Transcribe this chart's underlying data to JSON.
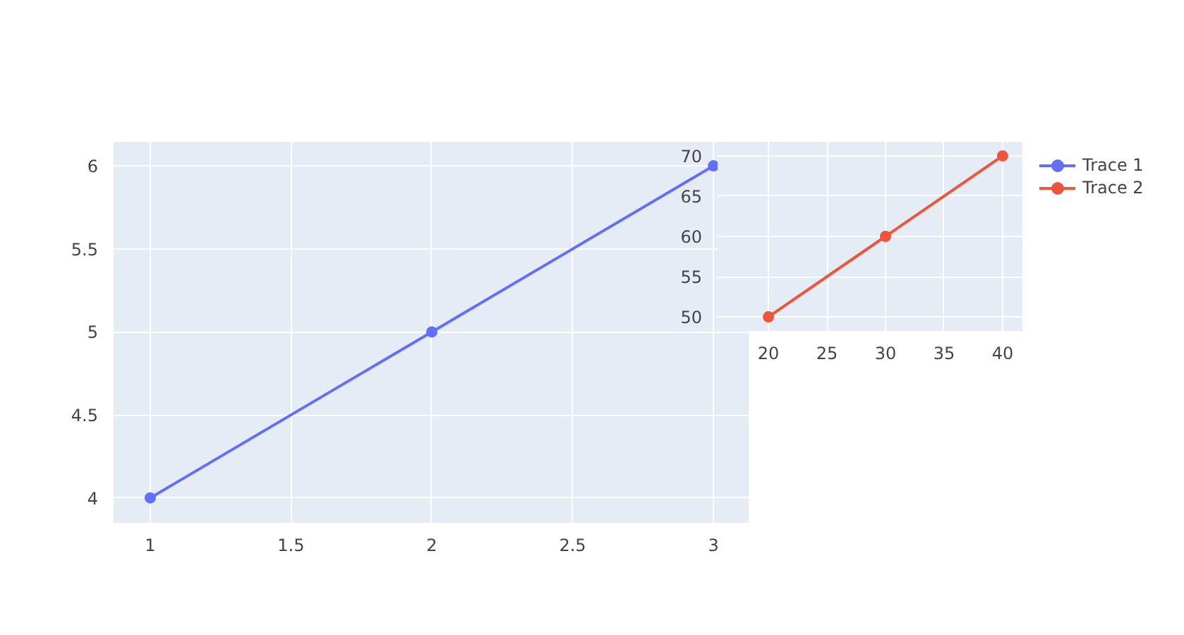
{
  "chart_data": [
    {
      "type": "line",
      "x": [
        1,
        2,
        3
      ],
      "series": [
        {
          "name": "Trace 1",
          "color": "#636efa",
          "values": [
            4,
            5,
            6
          ]
        }
      ],
      "xlim": [
        0.87,
        3.125
      ],
      "ylim": [
        3.85,
        6.145
      ],
      "xticks": [
        1,
        1.5,
        2,
        2.5,
        3
      ],
      "yticks": [
        4,
        4.5,
        5,
        5.5,
        6
      ],
      "grid": true,
      "marker": "circle",
      "legend": "right"
    },
    {
      "type": "line",
      "x": [
        20,
        30,
        40
      ],
      "series": [
        {
          "name": "Trace 2",
          "color": "#ef553b",
          "values": [
            50,
            60,
            70
          ]
        }
      ],
      "xlim": [
        15.66,
        41.69
      ],
      "ylim": [
        48.25,
        71.75
      ],
      "xticks": [
        20,
        25,
        30,
        35,
        40
      ],
      "yticks": [
        50,
        55,
        60,
        65,
        70
      ],
      "grid": true,
      "marker": "circle",
      "legend": "right"
    }
  ]
}
